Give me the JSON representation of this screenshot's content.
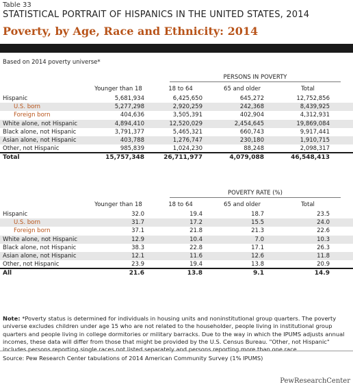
{
  "header": {
    "table_number": "Table 33",
    "super_title": "STATISTICAL PORTRAIT OF HISPANICS IN THE UNITED STATES, 2014",
    "title": "Poverty, by Age, Race and Ethnicity: 2014",
    "universe": "Based on 2014 poverty universe*"
  },
  "columns": [
    "Younger than 18",
    "18 to 64",
    "65 and older",
    "Total"
  ],
  "persons": {
    "heading": "PERSONS IN POVERTY",
    "rows": [
      {
        "label": "Hispanic",
        "sub": false,
        "values": [
          "5,681,934",
          "6,425,650",
          "645,272",
          "12,752,856"
        ]
      },
      {
        "label": "U.S. born",
        "sub": true,
        "values": [
          "5,277,298",
          "2,920,259",
          "242,368",
          "8,439,925"
        ]
      },
      {
        "label": "Foreign born",
        "sub": true,
        "values": [
          "404,636",
          "3,505,391",
          "402,904",
          "4,312,931"
        ]
      },
      {
        "label": "White alone, not Hispanic",
        "sub": false,
        "values": [
          "4,894,410",
          "12,520,029",
          "2,454,645",
          "19,869,084"
        ]
      },
      {
        "label": "Black alone, not Hispanic",
        "sub": false,
        "values": [
          "3,791,377",
          "5,465,321",
          "660,743",
          "9,917,441"
        ]
      },
      {
        "label": "Asian alone, not Hispanic",
        "sub": false,
        "values": [
          "403,788",
          "1,276,747",
          "230,180",
          "1,910,715"
        ]
      },
      {
        "label": "Other, not Hispanic",
        "sub": false,
        "values": [
          "985,839",
          "1,024,230",
          "88,248",
          "2,098,317"
        ]
      }
    ],
    "total": {
      "label": "Total",
      "values": [
        "15,757,348",
        "26,711,977",
        "4,079,088",
        "46,548,413"
      ]
    }
  },
  "rates": {
    "heading": "POVERTY RATE (%)",
    "rows": [
      {
        "label": "Hispanic",
        "sub": false,
        "values": [
          "32.0",
          "19.4",
          "18.7",
          "23.5"
        ]
      },
      {
        "label": "U.S. born",
        "sub": true,
        "values": [
          "31.7",
          "17.2",
          "15.5",
          "24.0"
        ]
      },
      {
        "label": "Foreign born",
        "sub": true,
        "values": [
          "37.1",
          "21.8",
          "21.3",
          "22.6"
        ]
      },
      {
        "label": "White alone, not Hispanic",
        "sub": false,
        "values": [
          "12.9",
          "10.4",
          "7.0",
          "10.3"
        ]
      },
      {
        "label": "Black alone, not Hispanic",
        "sub": false,
        "values": [
          "38.3",
          "22.8",
          "17.1",
          "26.3"
        ]
      },
      {
        "label": "Asian alone, not Hispanic",
        "sub": false,
        "values": [
          "12.1",
          "11.6",
          "12.6",
          "11.8"
        ]
      },
      {
        "label": "Other, not Hispanic",
        "sub": false,
        "values": [
          "23.9",
          "19.4",
          "13.8",
          "20.9"
        ]
      }
    ],
    "total": {
      "label": "All",
      "values": [
        "21.6",
        "13.8",
        "9.1",
        "14.9"
      ]
    }
  },
  "note": {
    "label": "Note:",
    "text": " *Poverty status is determined for individuals in housing units and noninstitutional group quarters. The poverty universe excludes children under age 15 who are not related to the householder, people living in institutional group quarters and people living in college dormitories or military barracks. Due to the way in which the IPUMS adjusts annual incomes, these data will differ from those that might be provided by the U.S. Census Bureau. \"Other, not Hispanic\" includes persons reporting single races not listed separately and persons reporting more than one race."
  },
  "source": "Source: Pew Research Center tabulations of 2014 American Community Survey (1% IPUMS)",
  "brand": "PewResearchCenter"
}
